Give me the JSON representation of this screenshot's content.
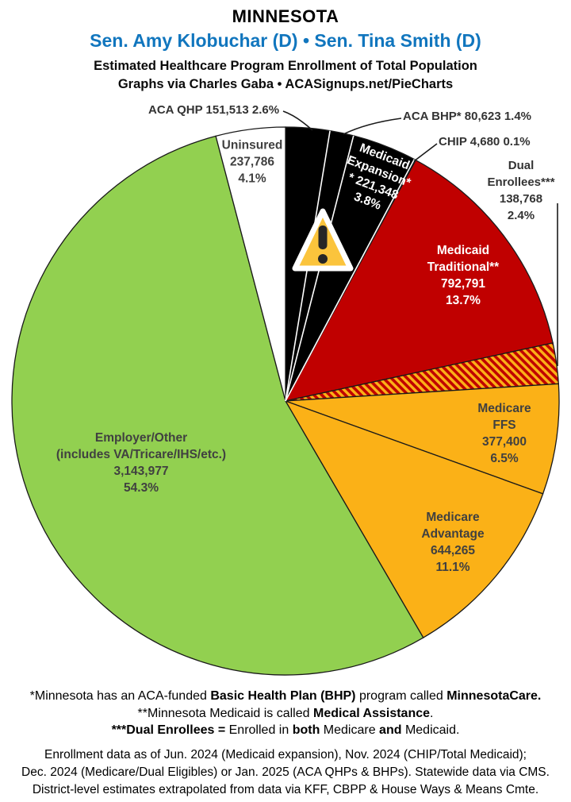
{
  "theme": {
    "accent-blue": "#1176BE",
    "label-gray": "#404040",
    "callout-gray": "#333333",
    "text-black": "#000000"
  },
  "header": {
    "state": "MINNESOTA",
    "senators": "Sen. Amy Klobuchar (D) • Sen. Tina Smith (D)",
    "subtitle": "Estimated Healthcare Program Enrollment of Total Population",
    "credit": "Graphs via Charles Gaba  •  ACASignups.net/PieCharts"
  },
  "chart_data": {
    "type": "pie",
    "title": "Estimated Healthcare Program Enrollment of Total Population",
    "region": "Minnesota",
    "start_angle_deg": 0,
    "direction": "clockwise",
    "center": [
      360,
      505
    ],
    "radius": 345,
    "outline_color": "#1A1A1A",
    "divider_color": "#FFFFFF",
    "slices": [
      {
        "name": "ACA QHP",
        "value": 151513,
        "pct": 2.6,
        "color": "#000000",
        "divider_after": true
      },
      {
        "name": "ACA BHP*",
        "value": 80623,
        "pct": 1.4,
        "color": "#000000",
        "divider_after": true
      },
      {
        "name": "Medicaid Expansion**",
        "value": 221348,
        "pct": 3.8,
        "color": "#000000",
        "divider_after": true
      },
      {
        "name": "CHIP",
        "value": 4680,
        "pct": 0.1,
        "color": "#000000"
      },
      {
        "name": "Medicaid Traditional**",
        "value": 792791,
        "pct": 13.7,
        "color": "#C00000"
      },
      {
        "name": "Dual Enrollees***",
        "value": 138768,
        "pct": 2.4,
        "pattern": "dual-hatch"
      },
      {
        "name": "Medicare FFS",
        "value": 377400,
        "pct": 6.5,
        "color": "#FBB117"
      },
      {
        "name": "Medicare Advantage",
        "value": 644265,
        "pct": 11.1,
        "color": "#FBB117"
      },
      {
        "name": "Employer/Other (includes VA/Tricare/IHS/etc.)",
        "value": 3143977,
        "pct": 54.3,
        "color": "#92D050"
      },
      {
        "name": "Uninsured",
        "value": 237786,
        "pct": 4.1,
        "color": "#FFFFFF"
      }
    ],
    "dual_hatch": {
      "colors": [
        "#C00000",
        "#FBB117"
      ]
    }
  },
  "labels": {
    "aca_qhp": "ACA QHP 151,513 2.6%",
    "aca_bhp": "ACA BHP* 80,623 1.4%",
    "chip": "CHIP 4,680 0.1%",
    "dual": "Dual Enrollees***\n138,768 2.4%",
    "uninsured": "Uninsured\n237,786\n4.1%",
    "medicaid_expansion": "Medicaid\nExpansion*\n* 221,348\n3.8%",
    "medicaid_traditional": "Medicaid\nTraditional**\n792,791\n13.7%",
    "medicare_ffs": "Medicare FFS\n377,400\n6.5%",
    "medicare_advantage": "Medicare\nAdvantage\n644,265\n11.1%",
    "employer": "Employer/Other\n(includes VA/Tricare/IHS/etc.)\n3,143,977\n54.3%"
  },
  "warning": {
    "fill": "#FBC43C",
    "ink": "#262626",
    "border": "#FFFFFF"
  },
  "footnotes": [
    [
      {
        "t": "*Minnesota has an ACA-funded ",
        "b": false
      },
      {
        "t": "Basic Health Plan (BHP)",
        "b": true
      },
      {
        "t": " program called ",
        "b": false
      },
      {
        "t": "MinnesotaCare.",
        "b": true
      }
    ],
    [
      {
        "t": "**Minnesota Medicaid is called ",
        "b": false
      },
      {
        "t": "Medical Assistance",
        "b": true
      },
      {
        "t": ".",
        "b": false
      }
    ],
    [
      {
        "t": "***Dual Enrollees =",
        "b": true
      },
      {
        "t": " Enrolled in ",
        "b": false
      },
      {
        "t": "both",
        "b": true
      },
      {
        "t": " Medicare ",
        "b": false
      },
      {
        "t": "and",
        "b": true
      },
      {
        "t": " Medicaid.",
        "b": false
      }
    ]
  ],
  "sources": [
    "Enrollment data as of Jun. 2024 (Medicaid expansion), Nov. 2024 (CHIP/Total Medicaid);",
    "Dec. 2024 (Medicare/Dual Eligibles) or Jan. 2025 (ACA QHPs & BHPs). Statewide data via CMS.",
    "District-level estimates extrapolated from data via KFF, CBPP & House Ways & Means Cmte."
  ]
}
